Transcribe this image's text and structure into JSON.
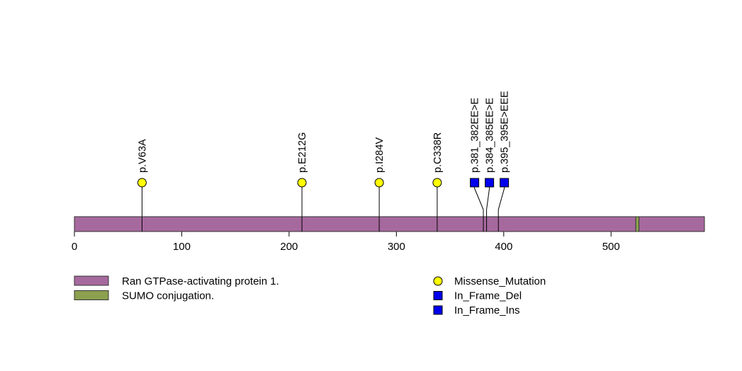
{
  "chart_data": {
    "type": "lollipop",
    "title": "",
    "xlabel": "",
    "ylabel": "",
    "protein_length": 587,
    "xlim": [
      0,
      587
    ],
    "x_ticks": [
      0,
      100,
      200,
      300,
      400,
      500
    ],
    "domains": [
      {
        "name": "Ran GTPase-activating protein 1.",
        "start": 1,
        "end": 587,
        "color": "#a6699e"
      },
      {
        "name": "SUMO conjugation.",
        "start": 523,
        "end": 526,
        "color": "#8ca04f"
      }
    ],
    "mutations": [
      {
        "label": "p.V63A",
        "position": 63,
        "type": "Missense_Mutation"
      },
      {
        "label": "p.E212G",
        "position": 212,
        "type": "Missense_Mutation"
      },
      {
        "label": "p.I284V",
        "position": 284,
        "type": "Missense_Mutation"
      },
      {
        "label": "p.C338R",
        "position": 338,
        "type": "Missense_Mutation"
      },
      {
        "label": "p.381_382EE>E",
        "position": 381,
        "type": "In_Frame_Del"
      },
      {
        "label": "p.384_385EE>E",
        "position": 384,
        "type": "In_Frame_Del"
      },
      {
        "label": "p.395_395E>EEE",
        "position": 395,
        "type": "In_Frame_Ins"
      }
    ],
    "mutation_types": [
      {
        "name": "Missense_Mutation",
        "shape": "circle",
        "color": "#ffff00"
      },
      {
        "name": "In_Frame_Del",
        "shape": "square",
        "color": "#0000ee"
      },
      {
        "name": "In_Frame_Ins",
        "shape": "square",
        "color": "#0000ee"
      }
    ]
  }
}
